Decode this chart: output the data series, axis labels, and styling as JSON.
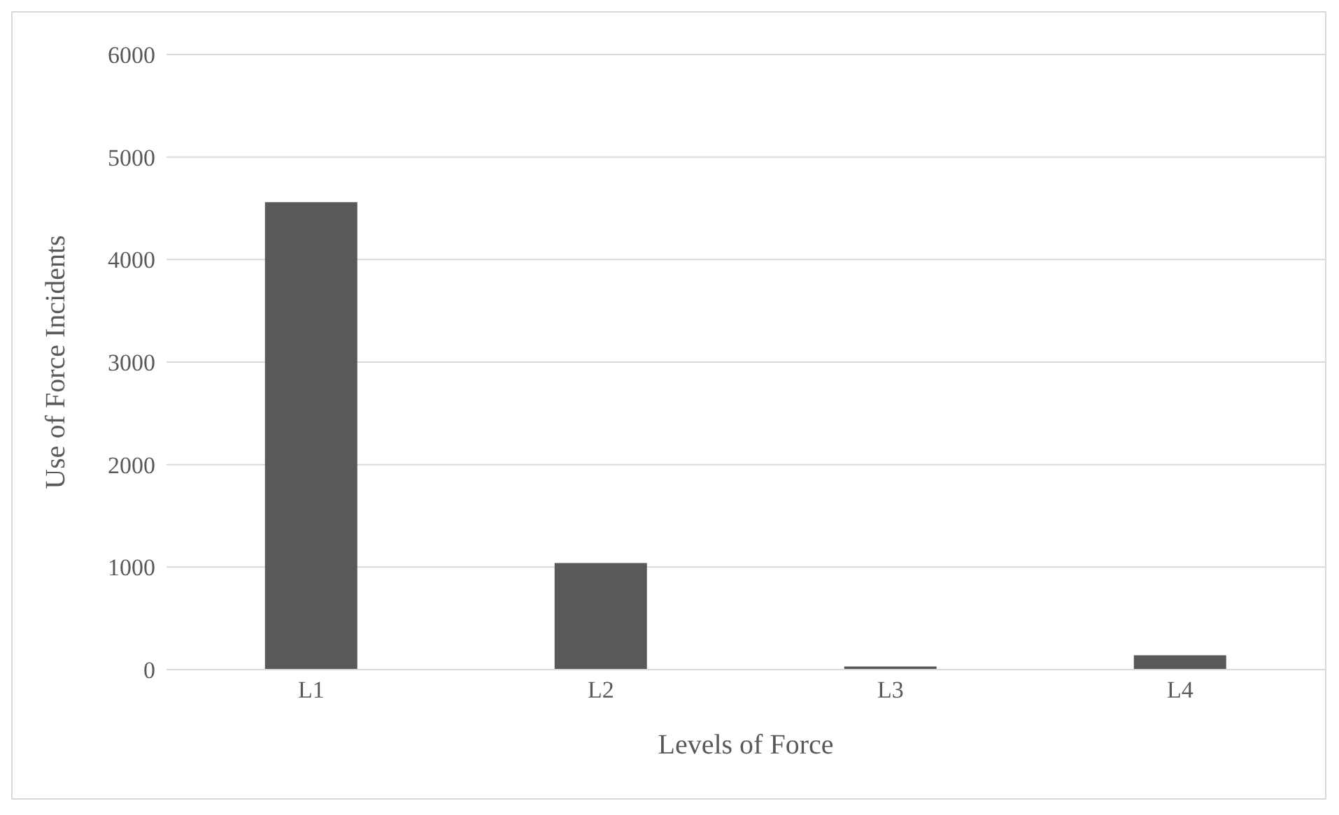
{
  "chart_data": {
    "type": "bar",
    "xlabel": "Levels of Force",
    "ylabel": "Use of Force Incidents",
    "categories": [
      "L1",
      "L2",
      "L3",
      "L4"
    ],
    "values": [
      4560,
      1040,
      30,
      140
    ],
    "color": "#595959",
    "ylim": [
      0,
      6000
    ],
    "yticks": [
      0,
      1000,
      2000,
      3000,
      4000,
      5000,
      6000
    ],
    "grid": "y",
    "legend": false
  }
}
